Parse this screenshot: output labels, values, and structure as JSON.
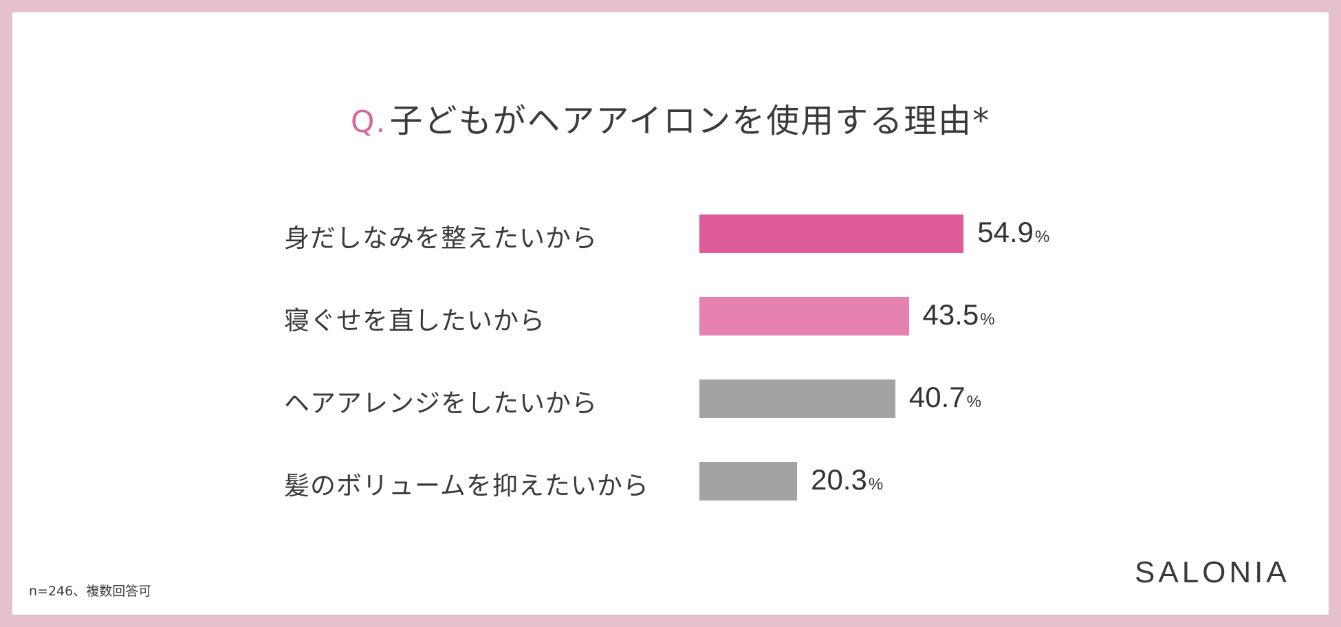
{
  "title": {
    "prefix": "Q.",
    "text": "子どもがヘアアイロンを使用する理由*"
  },
  "footnote": "n=246、複数回答可",
  "brand": "SALONIA",
  "colors": {
    "bar_1": "#dd5b98",
    "bar_2": "#e582b0",
    "bar_3": "#a3a3a3",
    "bar_4": "#a3a3a3",
    "border": "#e4c1cd",
    "title_accent": "#d26a9b"
  },
  "chart_data": {
    "type": "bar",
    "orientation": "horizontal",
    "title": "子どもがヘアアイロンを使用する理由*",
    "categories": [
      "身だしなみを整えたいから",
      "寝ぐせを直したいから",
      "ヘアアレンジをしたいから",
      "髪のボリュームを抑えたいから"
    ],
    "values": [
      54.9,
      43.5,
      40.7,
      20.3
    ],
    "value_labels": [
      "54.9",
      "43.5",
      "40.7",
      "20.3"
    ],
    "unit": "%",
    "xlabel": "",
    "ylabel": "",
    "grid": false,
    "legend": "none"
  }
}
